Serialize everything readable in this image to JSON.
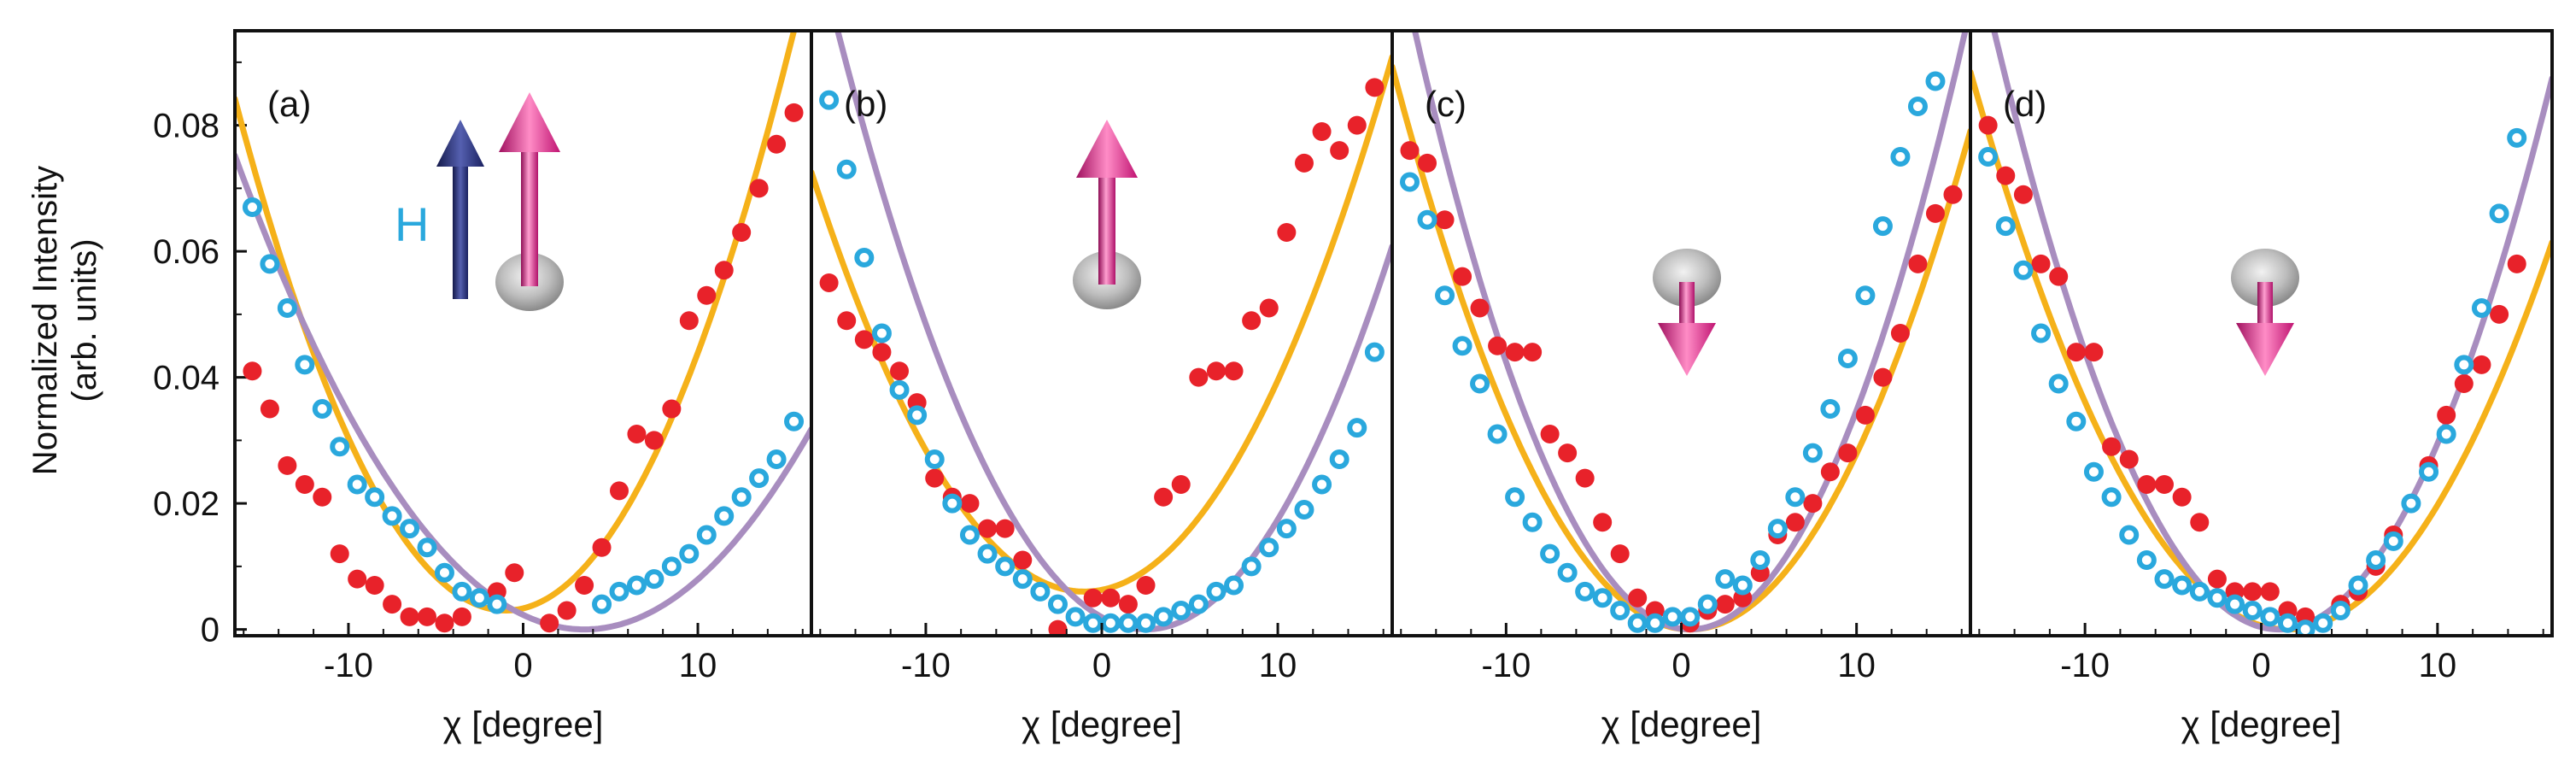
{
  "chart_data": {
    "type": "scatter",
    "ylabel": "Normalized Intensity",
    "ylabel_sub": "(arb. units)",
    "xlabel_symbol": "χ",
    "xlabel_unit": "[degree]",
    "ylim": [
      -0.001,
      0.095
    ],
    "yticks": [
      {
        "value": 0,
        "label": "0"
      },
      {
        "value": 0.02,
        "label": "0.02"
      },
      {
        "value": 0.04,
        "label": "0.04"
      },
      {
        "value": 0.06,
        "label": "0.06"
      },
      {
        "value": 0.08,
        "label": "0.08"
      }
    ],
    "xticks": [
      {
        "value": -10,
        "label": "-10"
      },
      {
        "value": 0,
        "label": "0"
      },
      {
        "value": 10,
        "label": "10"
      }
    ],
    "colors": {
      "red": "#e8222a",
      "blue": "#2aa8dd",
      "orange": "#f5b119",
      "purple": "#a88dbf",
      "magenta": "#d4177d",
      "navy": "#26327a"
    },
    "panels": [
      {
        "label": "(a)",
        "xlim": [
          -16.5,
          16.5
        ],
        "arrow": "up-large",
        "field_label": "H",
        "series": [
          {
            "name": "red",
            "marker": "filled",
            "x": [
              -15.5,
              -14.5,
              -13.5,
              -12.5,
              -11.5,
              -10.5,
              -9.5,
              -8.5,
              -7.5,
              -6.5,
              -5.5,
              -4.5,
              -3.5,
              -2.5,
              -1.5,
              -0.5,
              1.5,
              2.5,
              3.5,
              4.5,
              5.5,
              6.5,
              7.5,
              8.5,
              9.5,
              10.5,
              11.5,
              12.5,
              13.5,
              14.5,
              15.5
            ],
            "y": [
              0.041,
              0.035,
              0.026,
              0.023,
              0.021,
              0.012,
              0.008,
              0.007,
              0.004,
              0.002,
              0.002,
              0.001,
              0.002,
              0.005,
              0.006,
              0.009,
              0.001,
              0.003,
              0.007,
              0.013,
              0.022,
              0.031,
              0.03,
              0.035,
              0.049,
              0.053,
              0.057,
              0.063,
              0.07,
              0.077,
              0.082
            ]
          },
          {
            "name": "blue",
            "marker": "open",
            "x": [
              -15.5,
              -14.5,
              -13.5,
              -12.5,
              -11.5,
              -10.5,
              -9.5,
              -8.5,
              -7.5,
              -6.5,
              -5.5,
              -4.5,
              -3.5,
              -2.5,
              -1.5,
              4.5,
              5.5,
              6.5,
              7.5,
              8.5,
              9.5,
              10.5,
              11.5,
              12.5,
              13.5,
              14.5,
              15.5
            ],
            "y": [
              0.067,
              0.058,
              0.051,
              0.042,
              0.035,
              0.029,
              0.023,
              0.021,
              0.018,
              0.016,
              0.013,
              0.009,
              0.006,
              0.005,
              0.004,
              0.004,
              0.006,
              0.007,
              0.008,
              0.01,
              0.012,
              0.015,
              0.018,
              0.021,
              0.024,
              0.027,
              0.033
            ]
          },
          {
            "name": "orange-fit",
            "type": "line",
            "a": 0.000338,
            "x0": -1.0,
            "c": 0.003
          },
          {
            "name": "purple-fit",
            "type": "line",
            "a": 0.000188,
            "x0": 3.5,
            "c": 0.0
          }
        ]
      },
      {
        "label": "(b)",
        "xlim": [
          -16.5,
          16.5
        ],
        "arrow": "up",
        "series": [
          {
            "name": "red",
            "marker": "filled",
            "x": [
              -15.5,
              -14.5,
              -13.5,
              -12.5,
              -11.5,
              -10.5,
              -9.5,
              -8.5,
              -7.5,
              -6.5,
              -5.5,
              -4.5,
              -3.5,
              -2.5,
              -0.5,
              0.5,
              1.5,
              2.5,
              3.5,
              4.5,
              5.5,
              6.5,
              7.5,
              8.5,
              9.5,
              10.5,
              11.5,
              12.5,
              13.5,
              14.5,
              15.5
            ],
            "y": [
              0.055,
              0.049,
              0.046,
              0.044,
              0.041,
              0.036,
              0.024,
              0.021,
              0.02,
              0.016,
              0.016,
              0.011,
              0.006,
              0.0,
              0.005,
              0.005,
              0.004,
              0.007,
              0.021,
              0.023,
              0.04,
              0.041,
              0.041,
              0.049,
              0.051,
              0.063,
              0.074,
              0.079,
              0.076,
              0.08,
              0.086
            ]
          },
          {
            "name": "blue",
            "marker": "open",
            "x": [
              -15.5,
              -14.5,
              -13.5,
              -12.5,
              -11.5,
              -10.5,
              -9.5,
              -8.5,
              -7.5,
              -6.5,
              -5.5,
              -4.5,
              -3.5,
              -2.5,
              -1.5,
              -0.5,
              0.5,
              1.5,
              2.5,
              3.5,
              4.5,
              5.5,
              6.5,
              7.5,
              8.5,
              9.5,
              10.5,
              11.5,
              12.5,
              13.5,
              14.5,
              15.5
            ],
            "y": [
              0.084,
              0.073,
              0.059,
              0.047,
              0.038,
              0.034,
              0.027,
              0.02,
              0.015,
              0.012,
              0.01,
              0.008,
              0.006,
              0.004,
              0.002,
              0.001,
              0.001,
              0.001,
              0.001,
              0.002,
              0.003,
              0.004,
              0.006,
              0.007,
              0.01,
              0.013,
              0.016,
              0.019,
              0.023,
              0.027,
              0.032,
              0.044
            ]
          },
          {
            "name": "orange-fit",
            "type": "line",
            "a": 0.000277,
            "x0": -1.0,
            "c": 0.006
          },
          {
            "name": "purple-fit",
            "type": "line",
            "a": 0.00031,
            "x0": 2.5,
            "c": 0.0
          }
        ]
      },
      {
        "label": "(c)",
        "xlim": [
          -16.5,
          16.5
        ],
        "arrow": "down",
        "series": [
          {
            "name": "red",
            "marker": "filled",
            "x": [
              -15.5,
              -14.5,
              -13.5,
              -12.5,
              -11.5,
              -10.5,
              -9.5,
              -8.5,
              -7.5,
              -6.5,
              -5.5,
              -4.5,
              -3.5,
              -2.5,
              -1.5,
              -0.5,
              0.5,
              1.5,
              2.5,
              3.5,
              4.5,
              5.5,
              6.5,
              7.5,
              8.5,
              9.5,
              10.5,
              11.5,
              12.5,
              13.5,
              14.5,
              15.5
            ],
            "y": [
              0.076,
              0.074,
              0.065,
              0.056,
              0.051,
              0.045,
              0.044,
              0.044,
              0.031,
              0.028,
              0.024,
              0.017,
              0.012,
              0.005,
              0.003,
              0.002,
              0.001,
              0.003,
              0.004,
              0.005,
              0.009,
              0.015,
              0.017,
              0.02,
              0.025,
              0.028,
              0.034,
              0.04,
              0.047,
              0.058,
              0.066,
              0.069
            ]
          },
          {
            "name": "blue",
            "marker": "open",
            "x": [
              -15.5,
              -14.5,
              -13.5,
              -12.5,
              -11.5,
              -10.5,
              -9.5,
              -8.5,
              -7.5,
              -6.5,
              -5.5,
              -4.5,
              -3.5,
              -2.5,
              -1.5,
              -0.5,
              0.5,
              1.5,
              2.5,
              3.5,
              4.5,
              5.5,
              6.5,
              7.5,
              8.5,
              9.5,
              10.5,
              11.5,
              12.5,
              13.5,
              14.5
            ],
            "y": [
              0.071,
              0.065,
              0.053,
              0.045,
              0.039,
              0.031,
              0.021,
              0.017,
              0.012,
              0.009,
              0.006,
              0.005,
              0.003,
              0.001,
              0.001,
              0.002,
              0.002,
              0.004,
              0.008,
              0.007,
              0.011,
              0.016,
              0.021,
              0.028,
              0.035,
              0.043,
              0.053,
              0.064,
              0.075,
              0.083,
              0.087
            ]
          },
          {
            "name": "orange-fit",
            "type": "line",
            "a": 0.000309,
            "x0": 0.5,
            "c": 0.0
          },
          {
            "name": "purple-fit",
            "type": "line",
            "a": 0.000385,
            "x0": 0.5,
            "c": 0.0
          }
        ]
      },
      {
        "label": "(d)",
        "xlim": [
          -16.5,
          16.5
        ],
        "arrow": "down",
        "series": [
          {
            "name": "red",
            "marker": "filled",
            "x": [
              -15.5,
              -14.5,
              -13.5,
              -12.5,
              -11.5,
              -10.5,
              -9.5,
              -8.5,
              -7.5,
              -6.5,
              -5.5,
              -4.5,
              -3.5,
              -2.5,
              -1.5,
              -0.5,
              0.5,
              1.5,
              2.5,
              3.5,
              4.5,
              5.5,
              6.5,
              7.5,
              8.5,
              9.5,
              10.5,
              11.5,
              12.5,
              13.5,
              14.5
            ],
            "y": [
              0.08,
              0.072,
              0.069,
              0.058,
              0.056,
              0.044,
              0.044,
              0.029,
              0.027,
              0.023,
              0.023,
              0.021,
              0.017,
              0.008,
              0.006,
              0.006,
              0.006,
              0.003,
              0.002,
              0.001,
              0.004,
              0.006,
              0.01,
              0.015,
              0.02,
              0.026,
              0.034,
              0.039,
              0.042,
              0.05,
              0.058
            ]
          },
          {
            "name": "blue",
            "marker": "open",
            "x": [
              -15.5,
              -14.5,
              -13.5,
              -12.5,
              -11.5,
              -10.5,
              -9.5,
              -8.5,
              -7.5,
              -6.5,
              -5.5,
              -4.5,
              -3.5,
              -2.5,
              -1.5,
              -0.5,
              0.5,
              1.5,
              2.5,
              3.5,
              4.5,
              5.5,
              6.5,
              7.5,
              8.5,
              9.5,
              10.5,
              11.5,
              12.5,
              13.5,
              14.5
            ],
            "y": [
              0.075,
              0.064,
              0.057,
              0.047,
              0.039,
              0.033,
              0.025,
              0.021,
              0.015,
              0.011,
              0.008,
              0.007,
              0.006,
              0.005,
              0.004,
              0.003,
              0.002,
              0.001,
              0.0,
              0.001,
              0.003,
              0.007,
              0.011,
              0.014,
              0.02,
              0.025,
              0.031,
              0.042,
              0.051,
              0.066,
              0.078
            ]
          },
          {
            "name": "orange-fit",
            "type": "line",
            "a": 0.000273,
            "x0": 1.5,
            "c": 0.0
          },
          {
            "name": "purple-fit",
            "type": "line",
            "a": 0.000364,
            "x0": 1.0,
            "c": 0.0
          }
        ]
      }
    ]
  }
}
